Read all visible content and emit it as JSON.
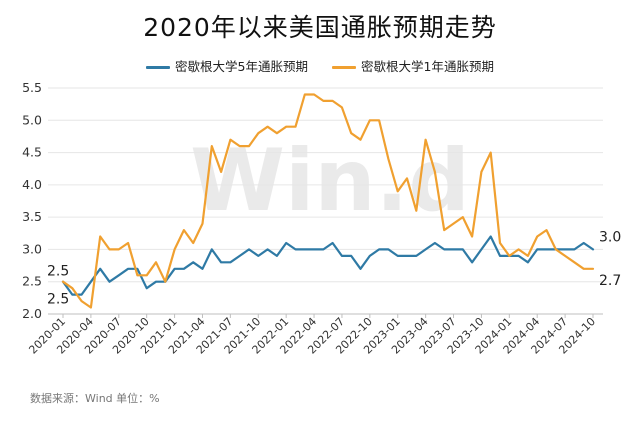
{
  "chart_data": {
    "type": "line",
    "title": "2020年以来美国通胀预期走势",
    "source_note": "数据来源：Wind  单位：%",
    "watermark": "Win.d",
    "ylim": [
      2.0,
      5.5
    ],
    "yticks": [
      "2.0",
      "2.5",
      "3.0",
      "3.5",
      "4.0",
      "4.5",
      "5.0",
      "5.5"
    ],
    "x_start": "2020-01",
    "x_tick_labels": [
      "2020-01",
      "2020-04",
      "2020-07",
      "2020-10",
      "2021-01",
      "2021-04",
      "2021-07",
      "2021-10",
      "2022-01",
      "2022-04",
      "2022-07",
      "2022-10",
      "2023-01",
      "2023-04",
      "2023-07",
      "2023-10",
      "2024-01",
      "2024-04",
      "2024-07",
      "2024-10"
    ],
    "legend_position": "top-center",
    "series": [
      {
        "name": "密歇根大学5年通胀预期",
        "color": "#2f7aa5",
        "values": [
          2.5,
          2.3,
          2.3,
          2.5,
          2.7,
          2.5,
          2.6,
          2.7,
          2.7,
          2.4,
          2.5,
          2.5,
          2.7,
          2.7,
          2.8,
          2.7,
          3.0,
          2.8,
          2.8,
          2.9,
          3.0,
          2.9,
          3.0,
          2.9,
          3.1,
          3.0,
          3.0,
          3.0,
          3.0,
          3.1,
          2.9,
          2.9,
          2.7,
          2.9,
          3.0,
          3.0,
          2.9,
          2.9,
          2.9,
          3.0,
          3.1,
          3.0,
          3.0,
          3.0,
          2.8,
          3.0,
          3.2,
          2.9,
          2.9,
          2.9,
          2.8,
          3.0,
          3.0,
          3.0,
          3.0,
          3.0,
          3.1,
          3.0
        ],
        "end_label": "3.0",
        "start_label": "2.5"
      },
      {
        "name": "密歇根大学1年通胀预期",
        "color": "#f0a030",
        "values": [
          2.5,
          2.4,
          2.2,
          2.1,
          3.2,
          3.0,
          3.0,
          3.1,
          2.6,
          2.6,
          2.8,
          2.5,
          3.0,
          3.3,
          3.1,
          3.4,
          4.6,
          4.2,
          4.7,
          4.6,
          4.6,
          4.8,
          4.9,
          4.8,
          4.9,
          4.9,
          5.4,
          5.4,
          5.3,
          5.3,
          5.2,
          4.8,
          4.7,
          5.0,
          5.0,
          4.4,
          3.9,
          4.1,
          3.6,
          4.7,
          4.2,
          3.3,
          3.4,
          3.5,
          3.2,
          4.2,
          4.5,
          3.1,
          2.9,
          3.0,
          2.9,
          3.2,
          3.3,
          3.0,
          2.9,
          2.8,
          2.7,
          2.7
        ],
        "end_label": "2.7",
        "start_label": "2.5"
      }
    ]
  }
}
